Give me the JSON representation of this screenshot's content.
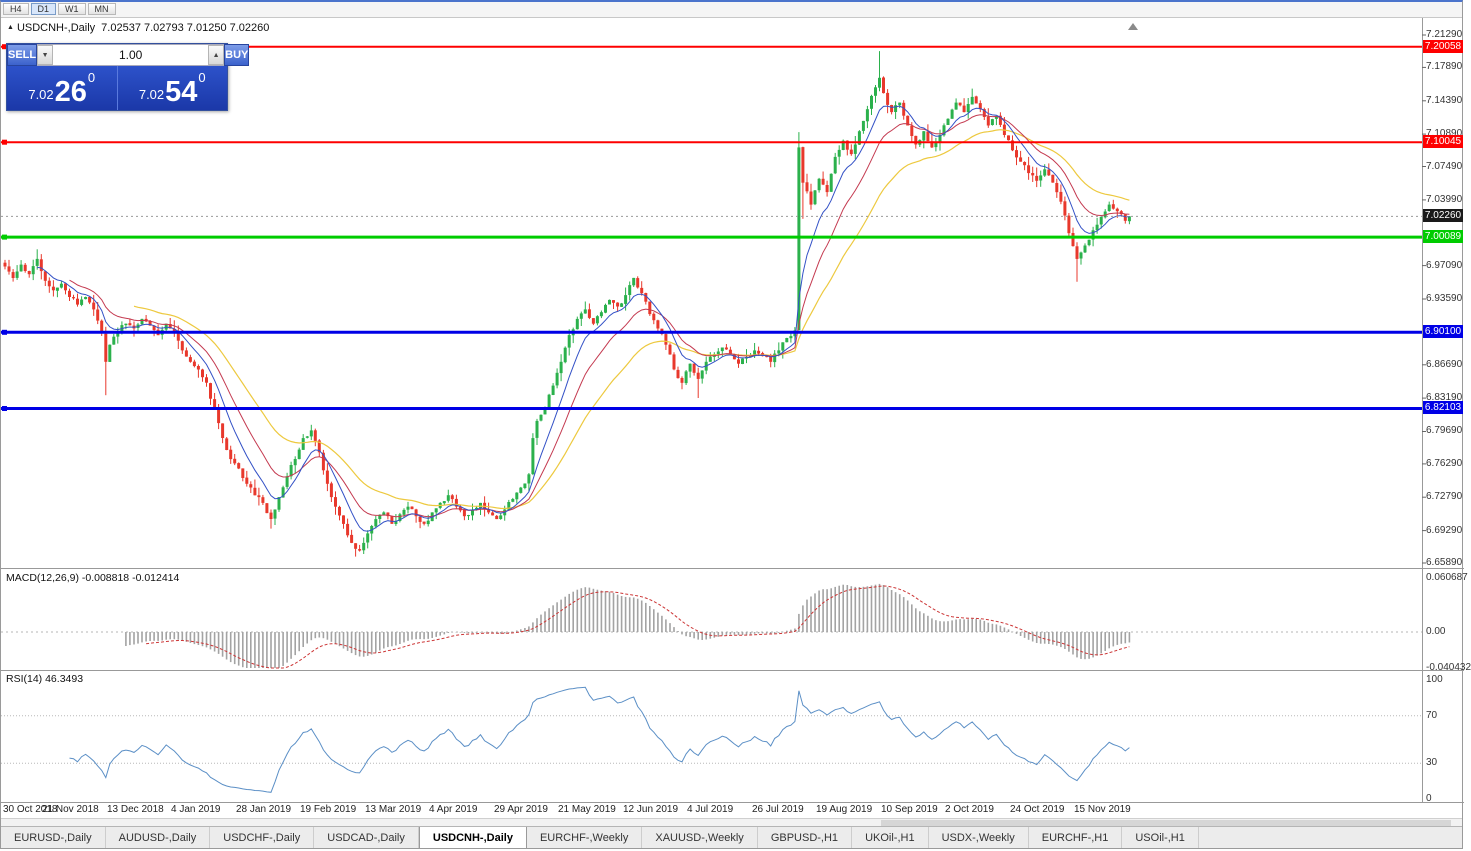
{
  "toolbar": {
    "timeframes": [
      {
        "label": "H4",
        "active": false
      },
      {
        "label": "D1",
        "active": true
      },
      {
        "label": "W1",
        "active": false
      },
      {
        "label": "MN",
        "active": false
      }
    ]
  },
  "chart_header": {
    "collapse_icon": "▲",
    "symbol": "USDCNH-,Daily",
    "ohlc": "7.02537 7.02793 7.01250 7.02260"
  },
  "trade_panel": {
    "sell_label": "SELL",
    "buy_label": "BUY",
    "volume": "1.00",
    "spinner_down": "▼",
    "spinner_up": "▲",
    "sell_price": {
      "prefix": "7.02",
      "big": "26",
      "sup": "0"
    },
    "buy_price": {
      "prefix": "7.02",
      "big": "54",
      "sup": "0"
    }
  },
  "price_axis": {
    "ticks": [
      "7.21290",
      "7.17890",
      "7.14390",
      "7.10890",
      "7.07490",
      "7.03990",
      "6.97090",
      "6.93590",
      "6.86690",
      "6.83190",
      "6.79690",
      "6.76290",
      "6.72790",
      "6.69290",
      "6.65890"
    ]
  },
  "hlines": [
    {
      "label": "7.20058",
      "value": 7.20058,
      "color": "#fe0000",
      "width": 2
    },
    {
      "label": "7.10045",
      "value": 7.10045,
      "color": "#fe0000",
      "width": 2
    },
    {
      "label": "7.00089",
      "value": 7.00089,
      "color": "#00cc00",
      "width": 3
    },
    {
      "label": "6.90100",
      "value": 6.901,
      "color": "#0000e6",
      "width": 3
    },
    {
      "label": "6.82103",
      "value": 6.82103,
      "color": "#0000e6",
      "width": 3
    }
  ],
  "current_price": {
    "label": "7.02260",
    "value": 7.0226
  },
  "macd_pane": {
    "title": "MACD(12,26,9) -0.008818 -0.012414",
    "axis": [
      {
        "label": "0.060687",
        "value": 0.060687
      },
      {
        "label": "0.00",
        "value": 0
      },
      {
        "label": "-0.040432",
        "value": -0.040432
      }
    ]
  },
  "rsi_pane": {
    "title": "RSI(14) 46.3493",
    "axis": [
      {
        "label": "100",
        "value": 100
      },
      {
        "label": "70",
        "value": 70
      },
      {
        "label": "30",
        "value": 30
      },
      {
        "label": "0",
        "value": 0
      }
    ],
    "levels": [
      70,
      30
    ]
  },
  "date_axis": {
    "bars_per_label": 16,
    "labels": [
      "30 Oct 2018",
      "21 Nov 2018",
      "13 Dec 2018",
      "4 Jan 2019",
      "28 Jan 2019",
      "19 Feb 2019",
      "13 Mar 2019",
      "4 Apr 2019",
      "29 Apr 2019",
      "21 May 2019",
      "12 Jun 2019",
      "4 Jul 2019",
      "26 Jul 2019",
      "19 Aug 2019",
      "10 Sep 2019",
      "2 Oct 2019",
      "24 Oct 2019",
      "15 Nov 2019"
    ]
  },
  "tabs": [
    {
      "label": "EURUSD-,Daily",
      "active": false
    },
    {
      "label": "AUDUSD-,Daily",
      "active": false
    },
    {
      "label": "USDCHF-,Daily",
      "active": false
    },
    {
      "label": "USDCAD-,Daily",
      "active": false
    },
    {
      "label": "USDCNH-,Daily",
      "active": true
    },
    {
      "label": "EURCHF-,Weekly",
      "active": false
    },
    {
      "label": "XAUUSD-,Weekly",
      "active": false
    },
    {
      "label": "GBPUSD-,H1",
      "active": false
    },
    {
      "label": "UKOil-,H1",
      "active": false
    },
    {
      "label": "USDX-,Weekly",
      "active": false
    },
    {
      "label": "EURCHF-,H1",
      "active": false
    },
    {
      "label": "USOil-,H1",
      "active": false
    }
  ],
  "colors": {
    "up": "#2bb14c",
    "down": "#e8382c",
    "ma_fast": "#3351c6",
    "ma_mid": "#c43a50",
    "ma_slow": "#edc93f",
    "macd_hist": "#a3a3a3",
    "macd_signal": "#cc3636",
    "rsi_line": "#5b8fc6",
    "separator": "#999999",
    "current_line": "#999999",
    "current_box": "#1a1a1a"
  },
  "chart_data": {
    "type": "candlestick",
    "symbol": "USDCNH",
    "timeframe": "Daily",
    "bar_count": 280,
    "seed": 11,
    "price_range": {
      "top": 7.2129,
      "bottom": 6.6589
    },
    "ma_periods": {
      "fast": 8,
      "mid": 16,
      "slow": 32
    },
    "macd_params": [
      12,
      26,
      9
    ],
    "rsi_period": 14,
    "price_anchors": [
      [
        0,
        6.97
      ],
      [
        2,
        6.958
      ],
      [
        4,
        6.972
      ],
      [
        6,
        6.962
      ],
      [
        8,
        6.978
      ],
      [
        10,
        6.955
      ],
      [
        12,
        6.945
      ],
      [
        14,
        6.952
      ],
      [
        16,
        6.938
      ],
      [
        18,
        6.93
      ],
      [
        20,
        6.938
      ],
      [
        22,
        6.925
      ],
      [
        24,
        6.9
      ],
      [
        25,
        6.87
      ],
      [
        26,
        6.888
      ],
      [
        28,
        6.902
      ],
      [
        30,
        6.91
      ],
      [
        32,
        6.905
      ],
      [
        34,
        6.915
      ],
      [
        36,
        6.908
      ],
      [
        38,
        6.898
      ],
      [
        40,
        6.91
      ],
      [
        42,
        6.9
      ],
      [
        44,
        6.882
      ],
      [
        46,
        6.87
      ],
      [
        48,
        6.862
      ],
      [
        50,
        6.848
      ],
      [
        52,
        6.82
      ],
      [
        54,
        6.79
      ],
      [
        56,
        6.768
      ],
      [
        58,
        6.758
      ],
      [
        60,
        6.742
      ],
      [
        62,
        6.73
      ],
      [
        64,
        6.722
      ],
      [
        66,
        6.705
      ],
      [
        68,
        6.728
      ],
      [
        70,
        6.75
      ],
      [
        72,
        6.768
      ],
      [
        74,
        6.79
      ],
      [
        76,
        6.798
      ],
      [
        78,
        6.775
      ],
      [
        80,
        6.742
      ],
      [
        82,
        6.718
      ],
      [
        84,
        6.7
      ],
      [
        86,
        6.68
      ],
      [
        88,
        6.672
      ],
      [
        90,
        6.69
      ],
      [
        92,
        6.705
      ],
      [
        94,
        6.712
      ],
      [
        96,
        6.7
      ],
      [
        98,
        6.71
      ],
      [
        100,
        6.718
      ],
      [
        102,
        6.708
      ],
      [
        104,
        6.7
      ],
      [
        106,
        6.712
      ],
      [
        108,
        6.722
      ],
      [
        110,
        6.73
      ],
      [
        112,
        6.718
      ],
      [
        114,
        6.708
      ],
      [
        116,
        6.715
      ],
      [
        118,
        6.722
      ],
      [
        120,
        6.712
      ],
      [
        122,
        6.705
      ],
      [
        124,
        6.715
      ],
      [
        126,
        6.726
      ],
      [
        128,
        6.738
      ],
      [
        130,
        6.752
      ],
      [
        131,
        6.79
      ],
      [
        132,
        6.808
      ],
      [
        134,
        6.822
      ],
      [
        136,
        6.845
      ],
      [
        138,
        6.87
      ],
      [
        140,
        6.898
      ],
      [
        142,
        6.915
      ],
      [
        144,
        6.925
      ],
      [
        146,
        6.91
      ],
      [
        148,
        6.922
      ],
      [
        150,
        6.935
      ],
      [
        152,
        6.928
      ],
      [
        154,
        6.94
      ],
      [
        156,
        6.958
      ],
      [
        158,
        6.942
      ],
      [
        160,
        6.92
      ],
      [
        162,
        6.905
      ],
      [
        164,
        6.888
      ],
      [
        166,
        6.862
      ],
      [
        168,
        6.848
      ],
      [
        170,
        6.868
      ],
      [
        172,
        6.852
      ],
      [
        174,
        6.87
      ],
      [
        176,
        6.878
      ],
      [
        178,
        6.885
      ],
      [
        180,
        6.878
      ],
      [
        182,
        6.868
      ],
      [
        184,
        6.875
      ],
      [
        186,
        6.882
      ],
      [
        188,
        6.876
      ],
      [
        190,
        6.87
      ],
      [
        192,
        6.882
      ],
      [
        194,
        6.895
      ],
      [
        196,
        6.903
      ],
      [
        197,
        7.095
      ],
      [
        198,
        7.058
      ],
      [
        200,
        7.035
      ],
      [
        202,
        7.062
      ],
      [
        204,
        7.048
      ],
      [
        206,
        7.085
      ],
      [
        208,
        7.102
      ],
      [
        210,
        7.088
      ],
      [
        212,
        7.112
      ],
      [
        214,
        7.135
      ],
      [
        216,
        7.158
      ],
      [
        217,
        7.168
      ],
      [
        218,
        7.152
      ],
      [
        220,
        7.132
      ],
      [
        222,
        7.142
      ],
      [
        224,
        7.118
      ],
      [
        226,
        7.098
      ],
      [
        228,
        7.112
      ],
      [
        230,
        7.095
      ],
      [
        232,
        7.108
      ],
      [
        234,
        7.125
      ],
      [
        236,
        7.142
      ],
      [
        238,
        7.132
      ],
      [
        240,
        7.148
      ],
      [
        242,
        7.135
      ],
      [
        244,
        7.118
      ],
      [
        246,
        7.128
      ],
      [
        248,
        7.108
      ],
      [
        250,
        7.092
      ],
      [
        252,
        7.08
      ],
      [
        254,
        7.068
      ],
      [
        256,
        7.06
      ],
      [
        258,
        7.072
      ],
      [
        260,
        7.058
      ],
      [
        262,
        7.038
      ],
      [
        264,
        7.005
      ],
      [
        266,
        6.978
      ],
      [
        268,
        6.992
      ],
      [
        270,
        7.008
      ],
      [
        272,
        7.022
      ],
      [
        274,
        7.035
      ],
      [
        276,
        7.028
      ],
      [
        278,
        7.018
      ],
      [
        279,
        7.0226
      ]
    ],
    "spikes": [
      [
        8,
        "high",
        6.988
      ],
      [
        25,
        "low",
        6.835
      ],
      [
        66,
        "low",
        6.695
      ],
      [
        172,
        "low",
        6.832
      ],
      [
        197,
        "high",
        7.111
      ],
      [
        198,
        "low",
        7.02
      ],
      [
        217,
        "high",
        7.196
      ],
      [
        266,
        "low",
        6.954
      ]
    ]
  }
}
